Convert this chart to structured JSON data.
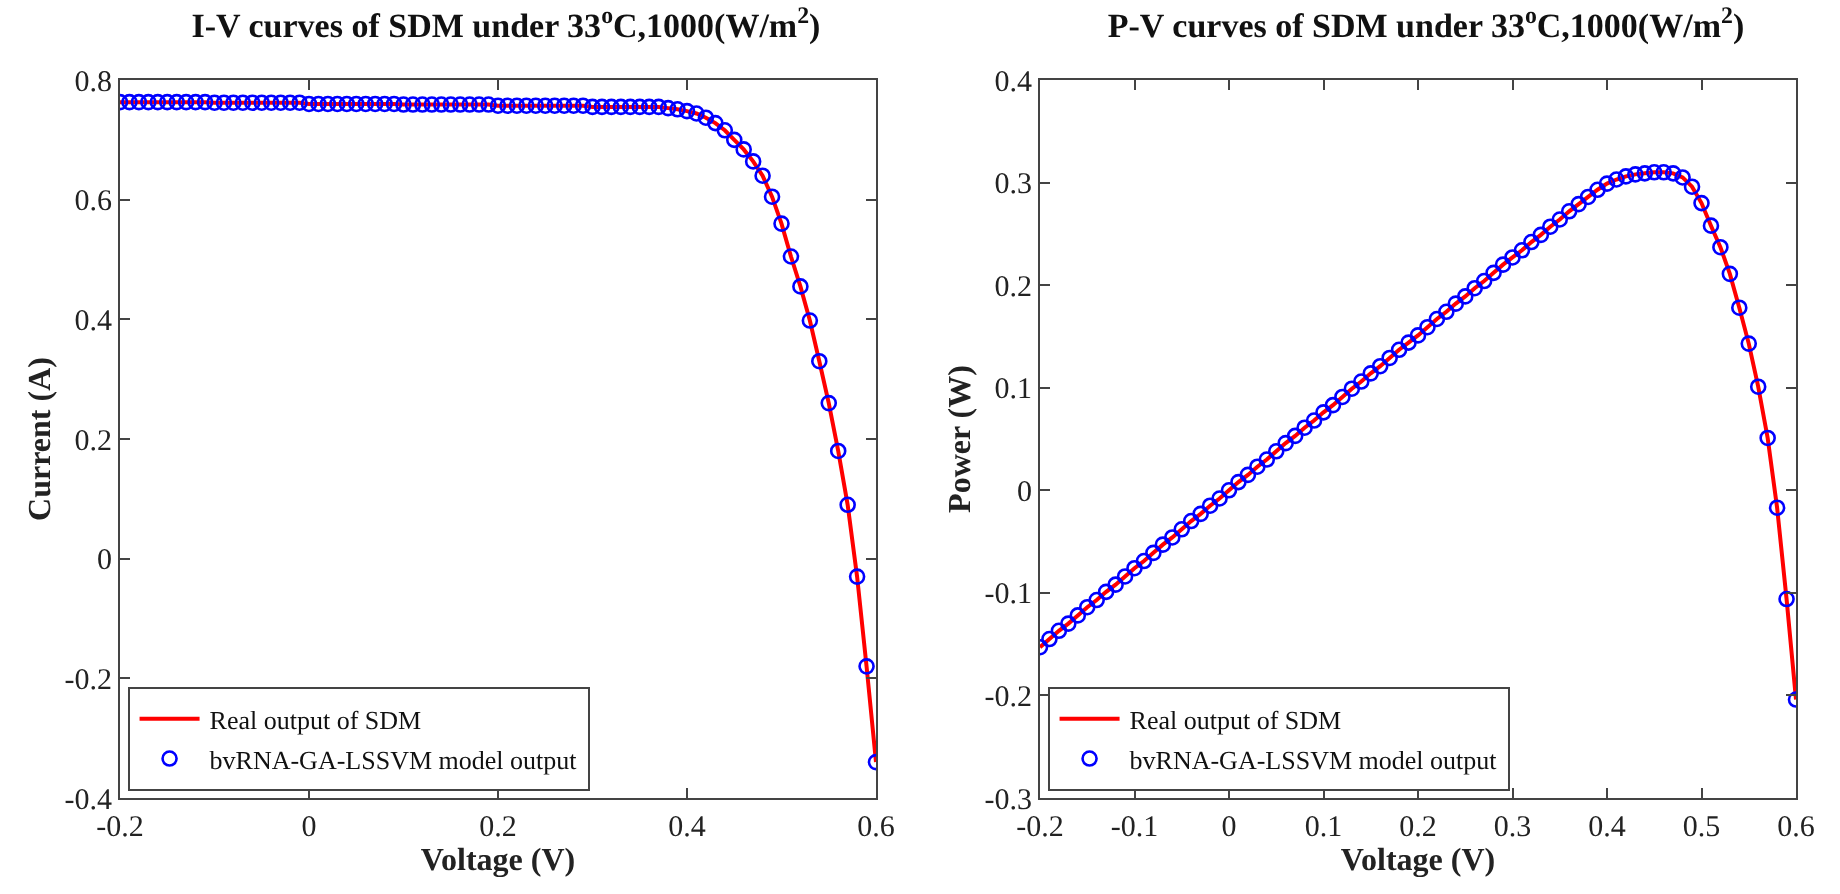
{
  "chart_data": [
    {
      "type": "line",
      "title": "I-V curves of SDM under 33$^{o}$C,1000(W/m$^{2}$)",
      "xlabel": "Voltage (V)",
      "ylabel": "Current (A)",
      "xlim": [
        -0.2,
        0.6
      ],
      "xticks": [
        -0.2,
        0,
        0.2,
        0.4,
        0.6
      ],
      "ylim": [
        -0.4,
        0.8
      ],
      "yticks": [
        -0.4,
        -0.2,
        0,
        0.2,
        0.4,
        0.6,
        0.8
      ],
      "grid": false,
      "legend": "bottom left",
      "x": [
        -0.2,
        -0.19,
        -0.18,
        -0.17,
        -0.16,
        -0.15,
        -0.14,
        -0.13,
        -0.12,
        -0.11,
        -0.1,
        -0.09,
        -0.08,
        -0.07,
        -0.06,
        -0.05,
        -0.04,
        -0.03,
        -0.02,
        -0.01,
        0,
        0.01,
        0.02,
        0.03,
        0.04,
        0.05,
        0.06,
        0.07,
        0.08,
        0.09,
        0.1,
        0.11,
        0.12,
        0.13,
        0.14,
        0.15,
        0.16,
        0.17,
        0.18,
        0.19,
        0.2,
        0.21,
        0.22,
        0.23,
        0.24,
        0.25,
        0.26,
        0.27,
        0.28,
        0.29,
        0.3,
        0.31,
        0.32,
        0.33,
        0.34,
        0.35,
        0.36,
        0.37,
        0.38,
        0.39,
        0.4,
        0.41,
        0.42,
        0.43,
        0.44,
        0.45,
        0.46,
        0.47,
        0.48,
        0.49,
        0.5,
        0.51,
        0.52,
        0.53,
        0.54,
        0.55,
        0.56,
        0.57,
        0.58,
        0.59,
        0.6
      ],
      "series": [
        {
          "name": "Real output of SDM",
          "type": "line",
          "marker": "none",
          "line_style": "solid",
          "color": "#ff0000",
          "values": [
            0.763,
            0.763,
            0.763,
            0.763,
            0.763,
            0.763,
            0.763,
            0.763,
            0.763,
            0.763,
            0.762,
            0.762,
            0.762,
            0.762,
            0.762,
            0.762,
            0.762,
            0.762,
            0.762,
            0.762,
            0.76,
            0.76,
            0.76,
            0.76,
            0.76,
            0.76,
            0.76,
            0.76,
            0.76,
            0.76,
            0.759,
            0.759,
            0.759,
            0.759,
            0.759,
            0.759,
            0.759,
            0.759,
            0.759,
            0.759,
            0.757,
            0.757,
            0.757,
            0.757,
            0.757,
            0.757,
            0.757,
            0.757,
            0.757,
            0.757,
            0.755,
            0.755,
            0.755,
            0.755,
            0.755,
            0.755,
            0.755,
            0.755,
            0.753,
            0.751,
            0.748,
            0.744,
            0.737,
            0.728,
            0.716,
            0.7,
            0.684,
            0.664,
            0.64,
            0.605,
            0.56,
            0.505,
            0.455,
            0.398,
            0.33,
            0.26,
            0.18,
            0.09,
            -0.03,
            -0.18,
            -0.34
          ]
        },
        {
          "name": "bvRNA-GA-LSSVM model output",
          "type": "scatter",
          "marker": "circle",
          "color": "#0000ff",
          "values": [
            0.763,
            0.763,
            0.763,
            0.763,
            0.763,
            0.763,
            0.763,
            0.763,
            0.763,
            0.763,
            0.762,
            0.762,
            0.762,
            0.762,
            0.762,
            0.762,
            0.762,
            0.762,
            0.762,
            0.762,
            0.76,
            0.76,
            0.76,
            0.76,
            0.76,
            0.76,
            0.76,
            0.76,
            0.76,
            0.76,
            0.759,
            0.759,
            0.759,
            0.759,
            0.759,
            0.759,
            0.759,
            0.759,
            0.759,
            0.759,
            0.757,
            0.757,
            0.757,
            0.757,
            0.757,
            0.757,
            0.757,
            0.757,
            0.757,
            0.757,
            0.755,
            0.755,
            0.755,
            0.755,
            0.755,
            0.755,
            0.755,
            0.755,
            0.753,
            0.751,
            0.748,
            0.744,
            0.737,
            0.728,
            0.716,
            0.7,
            0.684,
            0.664,
            0.64,
            0.605,
            0.56,
            0.505,
            0.455,
            0.398,
            0.33,
            0.26,
            0.18,
            0.09,
            -0.03,
            -0.18,
            -0.34
          ]
        }
      ]
    },
    {
      "type": "line",
      "title": "P-V curves of SDM under 33$^{o}$C,1000(W/m$^{2}$)",
      "xlabel": "Voltage (V)",
      "ylabel": "Power (W)",
      "xlim": [
        -0.2,
        0.6
      ],
      "xticks": [
        -0.2,
        -0.1,
        0,
        0.1,
        0.2,
        0.3,
        0.4,
        0.5,
        0.6
      ],
      "ylim": [
        -0.3,
        0.4
      ],
      "yticks": [
        -0.3,
        -0.2,
        -0.1,
        0,
        0.1,
        0.2,
        0.3,
        0.4
      ],
      "grid": false,
      "legend": "bottom left",
      "x": [
        -0.2,
        -0.19,
        -0.18,
        -0.17,
        -0.16,
        -0.15,
        -0.14,
        -0.13,
        -0.12,
        -0.11,
        -0.1,
        -0.09,
        -0.08,
        -0.07,
        -0.06,
        -0.05,
        -0.04,
        -0.03,
        -0.02,
        -0.01,
        0,
        0.01,
        0.02,
        0.03,
        0.04,
        0.05,
        0.06,
        0.07,
        0.08,
        0.09,
        0.1,
        0.11,
        0.12,
        0.13,
        0.14,
        0.15,
        0.16,
        0.17,
        0.18,
        0.19,
        0.2,
        0.21,
        0.22,
        0.23,
        0.24,
        0.25,
        0.26,
        0.27,
        0.28,
        0.29,
        0.3,
        0.31,
        0.32,
        0.33,
        0.34,
        0.35,
        0.36,
        0.37,
        0.38,
        0.39,
        0.4,
        0.41,
        0.42,
        0.43,
        0.44,
        0.45,
        0.46,
        0.47,
        0.48,
        0.49,
        0.5,
        0.51,
        0.52,
        0.53,
        0.54,
        0.55,
        0.56,
        0.57,
        0.58,
        0.59,
        0.6
      ],
      "series": [
        {
          "name": "Real output of SDM",
          "type": "line",
          "marker": "none",
          "line_style": "solid",
          "color": "#ff0000",
          "values": [
            -0.153,
            -0.145,
            -0.137,
            -0.13,
            -0.122,
            -0.114,
            -0.107,
            -0.099,
            -0.092,
            -0.084,
            -0.076,
            -0.069,
            -0.061,
            -0.053,
            -0.046,
            -0.038,
            -0.03,
            -0.023,
            -0.015,
            -0.008,
            0,
            0.008,
            0.015,
            0.023,
            0.03,
            0.038,
            0.046,
            0.053,
            0.061,
            0.068,
            0.076,
            0.083,
            0.091,
            0.099,
            0.106,
            0.114,
            0.121,
            0.129,
            0.137,
            0.144,
            0.151,
            0.159,
            0.167,
            0.174,
            0.182,
            0.189,
            0.197,
            0.204,
            0.212,
            0.22,
            0.227,
            0.234,
            0.242,
            0.249,
            0.257,
            0.264,
            0.272,
            0.279,
            0.286,
            0.293,
            0.299,
            0.303,
            0.306,
            0.308,
            0.309,
            0.31,
            0.31,
            0.309,
            0.305,
            0.296,
            0.28,
            0.258,
            0.237,
            0.211,
            0.178,
            0.143,
            0.101,
            0.051,
            -0.017,
            -0.106,
            -0.204
          ]
        },
        {
          "name": "bvRNA-GA-LSSVM model output",
          "type": "scatter",
          "marker": "circle",
          "color": "#0000ff",
          "values": [
            -0.153,
            -0.145,
            -0.137,
            -0.13,
            -0.122,
            -0.114,
            -0.107,
            -0.099,
            -0.092,
            -0.084,
            -0.076,
            -0.069,
            -0.061,
            -0.053,
            -0.046,
            -0.038,
            -0.03,
            -0.023,
            -0.015,
            -0.008,
            0,
            0.008,
            0.015,
            0.023,
            0.03,
            0.038,
            0.046,
            0.053,
            0.061,
            0.068,
            0.076,
            0.083,
            0.091,
            0.099,
            0.106,
            0.114,
            0.121,
            0.129,
            0.137,
            0.144,
            0.151,
            0.159,
            0.167,
            0.174,
            0.182,
            0.189,
            0.197,
            0.204,
            0.212,
            0.22,
            0.227,
            0.234,
            0.242,
            0.249,
            0.257,
            0.264,
            0.272,
            0.279,
            0.286,
            0.293,
            0.299,
            0.303,
            0.306,
            0.308,
            0.309,
            0.31,
            0.31,
            0.309,
            0.305,
            0.296,
            0.28,
            0.258,
            0.237,
            0.211,
            0.178,
            0.143,
            0.101,
            0.051,
            -0.017,
            -0.106,
            -0.204
          ]
        }
      ]
    }
  ]
}
